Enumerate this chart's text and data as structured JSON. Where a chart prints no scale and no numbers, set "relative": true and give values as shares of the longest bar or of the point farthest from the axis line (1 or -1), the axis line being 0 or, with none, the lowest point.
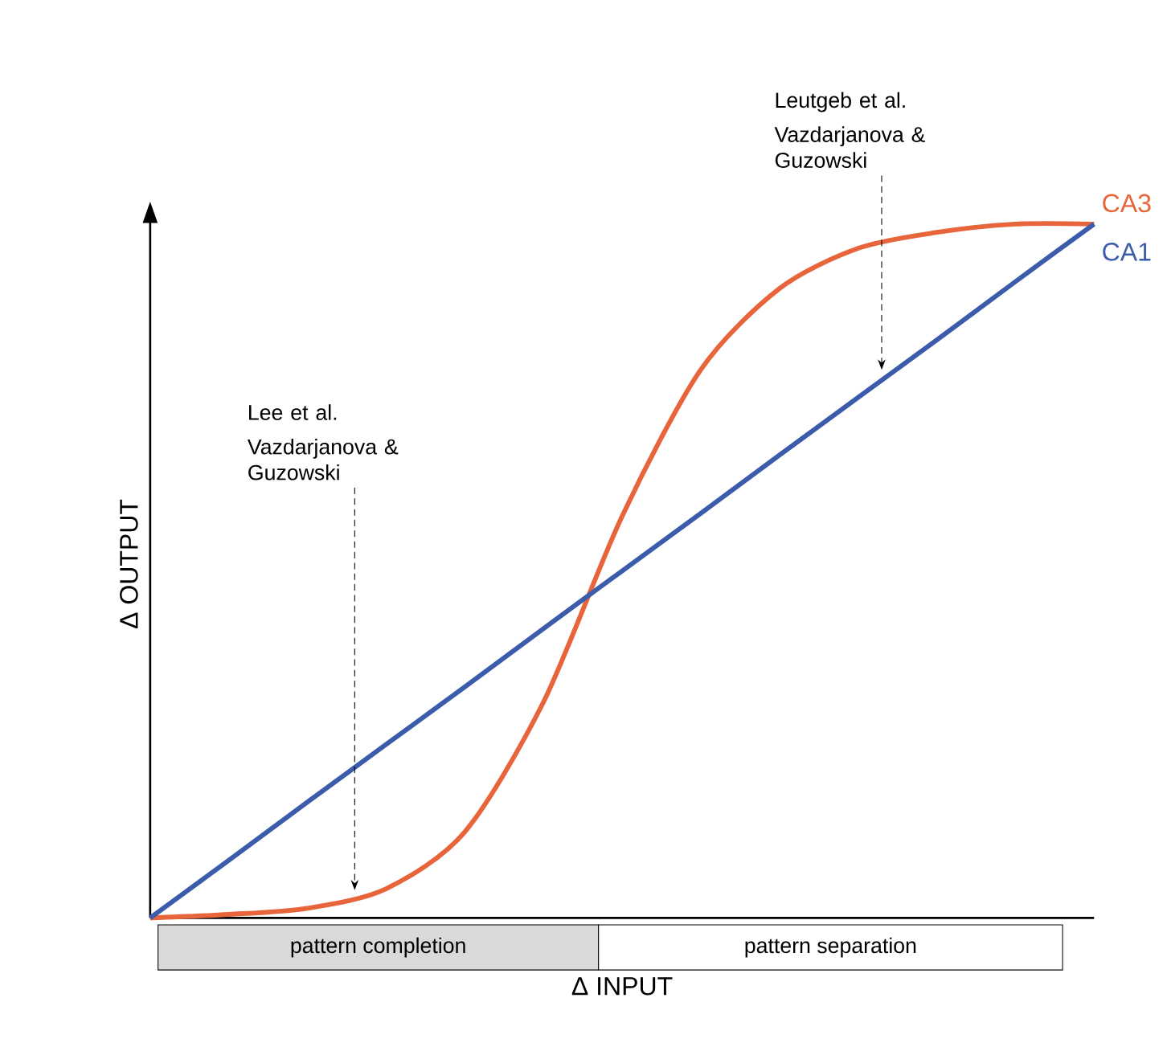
{
  "chart_data": {
    "type": "line",
    "relative": true,
    "xlabel": "Δ INPUT",
    "ylabel": "Δ OUTPUT",
    "marker": "none",
    "line_style": "solid",
    "categories": [
      null,
      null,
      null,
      null,
      null,
      null,
      null,
      null,
      null,
      null,
      null,
      null,
      null
    ],
    "series": [
      {
        "name": "CA3",
        "color": "#e8643a",
        "values": [
          0,
          0.005,
          0.014,
          0.042,
          0.124,
          0.311,
          0.579,
          0.79,
          0.907,
          0.965,
          0.988,
          1.0,
          1.0
        ]
      },
      {
        "name": "CA1",
        "color": "#3b5bab",
        "values": [
          0,
          0.083,
          0.167,
          0.25,
          0.333,
          0.417,
          0.5,
          0.583,
          0.667,
          0.75,
          0.833,
          0.917,
          1.0
        ]
      }
    ],
    "annotations": [
      "Lee et al.",
      "Vazdarjanova & Guzowski",
      "Leutgeb et al.",
      "Vazdarjanova & Guzowski",
      "pattern completion",
      "pattern separation"
    ]
  }
}
